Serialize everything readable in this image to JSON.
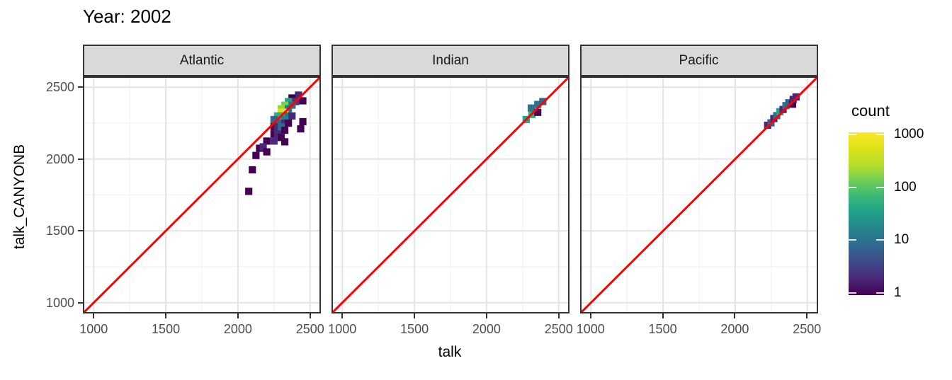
{
  "title": "Year: 2002",
  "style": {
    "background": "#ffffff",
    "strip_fill": "#d9d9d9",
    "strip_border": "#333333",
    "panel_border": "#333333",
    "grid_major": "#e4e4e4",
    "grid_minor": "#f2f2f2",
    "tick_label_color": "#4d4d4d",
    "identity_line_color": "#ff0000",
    "viridis_stops": [
      [
        0.0,
        "#440154"
      ],
      [
        0.1,
        "#482878"
      ],
      [
        0.2,
        "#3e4989"
      ],
      [
        0.3,
        "#31688e"
      ],
      [
        0.4,
        "#26828e"
      ],
      [
        0.5,
        "#1f9e89"
      ],
      [
        0.6,
        "#35b779"
      ],
      [
        0.7,
        "#6ece58"
      ],
      [
        0.8,
        "#b5de2b"
      ],
      [
        0.9,
        "#dce319"
      ],
      [
        1.0,
        "#fde725"
      ]
    ]
  },
  "chart_data": {
    "type": "heatmap",
    "subtype": "bin2d_faceted_scatter",
    "title": "Year: 2002",
    "xlabel": "talk",
    "ylabel": "talk_CANYONB",
    "xlim": [
      925,
      2575
    ],
    "ylim": [
      925,
      2575
    ],
    "x_ticks": [
      1000,
      1500,
      2000,
      2500
    ],
    "y_ticks": [
      2500,
      2000,
      1500,
      1000
    ],
    "minor_ticks": [
      1250,
      1750,
      2250
    ],
    "bin_size": 50,
    "grid": true,
    "reference_line": "y = x",
    "legend": {
      "title": "count",
      "scale": "log10",
      "ticks": [
        1000,
        100,
        10,
        1
      ],
      "position": "right"
    },
    "facets": [
      {
        "label": "Atlantic",
        "bins": [
          [
            2420,
            2445,
            2
          ],
          [
            2375,
            2425,
            1
          ],
          [
            2400,
            2400,
            3
          ],
          [
            2450,
            2405,
            1
          ],
          [
            2350,
            2400,
            40
          ],
          [
            2375,
            2375,
            10
          ],
          [
            2325,
            2375,
            150
          ],
          [
            2300,
            2350,
            200
          ],
          [
            2350,
            2350,
            12
          ],
          [
            2325,
            2325,
            1000
          ],
          [
            2300,
            2325,
            500
          ],
          [
            2275,
            2300,
            60
          ],
          [
            2300,
            2300,
            50
          ],
          [
            2350,
            2300,
            10
          ],
          [
            2375,
            2300,
            2
          ],
          [
            2250,
            2275,
            8
          ],
          [
            2325,
            2275,
            15
          ],
          [
            2275,
            2250,
            10
          ],
          [
            2300,
            2250,
            8
          ],
          [
            2325,
            2250,
            2
          ],
          [
            2350,
            2250,
            1
          ],
          [
            2450,
            2260,
            1
          ],
          [
            2250,
            2225,
            1
          ],
          [
            2275,
            2225,
            2
          ],
          [
            2300,
            2225,
            8
          ],
          [
            2435,
            2210,
            1
          ],
          [
            2325,
            2200,
            1
          ],
          [
            2250,
            2175,
            1
          ],
          [
            2275,
            2175,
            2
          ],
          [
            2300,
            2150,
            1
          ],
          [
            2200,
            2125,
            1
          ],
          [
            2250,
            2125,
            2
          ],
          [
            2325,
            2120,
            1
          ],
          [
            2150,
            2075,
            1
          ],
          [
            2175,
            2085,
            2
          ],
          [
            2200,
            2050,
            1
          ],
          [
            2125,
            2025,
            1
          ],
          [
            2100,
            1925,
            1
          ],
          [
            2075,
            1775,
            1
          ]
        ]
      },
      {
        "label": "Indian",
        "bins": [
          [
            2275,
            2275,
            40
          ],
          [
            2315,
            2310,
            50
          ],
          [
            2310,
            2355,
            12
          ],
          [
            2355,
            2380,
            10
          ],
          [
            2355,
            2325,
            1
          ],
          [
            2390,
            2400,
            8
          ]
        ]
      },
      {
        "label": "Pacific",
        "bins": [
          [
            2225,
            2235,
            2
          ],
          [
            2248,
            2252,
            8
          ],
          [
            2268,
            2282,
            2
          ],
          [
            2288,
            2302,
            10
          ],
          [
            2310,
            2330,
            40
          ],
          [
            2332,
            2345,
            2
          ],
          [
            2352,
            2372,
            10
          ],
          [
            2372,
            2392,
            8
          ],
          [
            2398,
            2382,
            1
          ],
          [
            2402,
            2415,
            2
          ],
          [
            2422,
            2432,
            2
          ]
        ]
      }
    ]
  }
}
